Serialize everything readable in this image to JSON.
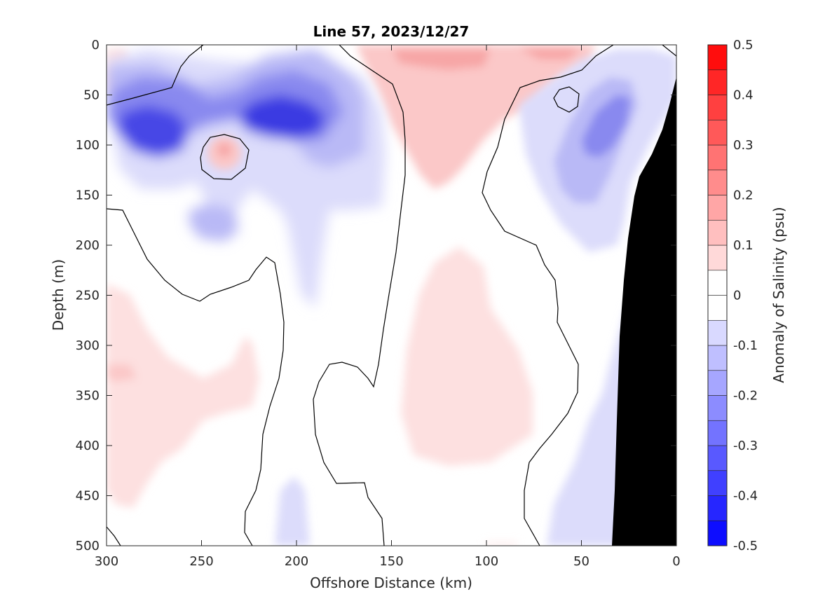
{
  "chart_data": {
    "type": "heatmap",
    "title": "Line 57, 2023/12/27",
    "xlabel": "Offshore Distance (km)",
    "ylabel": "Depth (m)",
    "colorbar_label": "Anomaly of Salinity (psu)",
    "xlim": [
      300,
      0
    ],
    "ylim": [
      500,
      0
    ],
    "x_reversed": true,
    "y_reversed": true,
    "grid": false,
    "x_ticks": [
      300,
      250,
      200,
      150,
      100,
      50,
      0
    ],
    "x_tick_labels": [
      "300",
      "250",
      "200",
      "150",
      "100",
      "50",
      "0"
    ],
    "y_ticks": [
      0,
      50,
      100,
      150,
      200,
      250,
      300,
      350,
      400,
      450,
      500
    ],
    "y_tick_labels": [
      "0",
      "50",
      "100",
      "150",
      "200",
      "250",
      "300",
      "350",
      "400",
      "450",
      "500"
    ],
    "colorbar": {
      "range": [
        -0.5,
        0.5
      ],
      "levels": [
        -0.5,
        -0.45,
        -0.4,
        -0.35,
        -0.3,
        -0.25,
        -0.2,
        -0.15,
        -0.1,
        -0.05,
        0,
        0.05,
        0.1,
        0.15,
        0.2,
        0.25,
        0.3,
        0.35,
        0.4,
        0.45,
        0.5
      ],
      "tick_values": [
        0.5,
        0.4,
        0.3,
        0.2,
        0.1,
        0,
        -0.1,
        -0.2,
        -0.3,
        -0.4,
        -0.5
      ],
      "tick_labels": [
        "0.5",
        "0.4",
        "0.3",
        "0.2",
        "0.1",
        "0",
        "-0.1",
        "-0.2",
        "-0.3",
        "-0.4",
        "-0.5"
      ],
      "min_color": "#0000ff",
      "max_color": "#ff0000",
      "mid_color": "#ffffff"
    },
    "zero_contour_color": "#000000",
    "bathymetry_color": "#000000",
    "anomaly_features": [
      {
        "x": [
          300,
          250
        ],
        "depth": [
          75,
          125
        ],
        "value": -0.45
      },
      {
        "x": [
          230,
          175
        ],
        "depth": [
          55,
          115
        ],
        "value": -0.45
      },
      {
        "x": [
          245,
          228
        ],
        "depth": [
          90,
          125
        ],
        "value": 0.15
      },
      {
        "x": [
          260,
          230
        ],
        "depth": [
          175,
          225
        ],
        "value": -0.2
      },
      {
        "x": [
          200,
          180
        ],
        "depth": [
          100,
          270
        ],
        "value": -0.1
      },
      {
        "x": [
          55,
          25
        ],
        "depth": [
          40,
          165
        ],
        "value": -0.3
      },
      {
        "x": [
          150,
          90
        ],
        "depth": [
          0,
          140
        ],
        "value": 0.2
      },
      {
        "x": [
          135,
          75
        ],
        "depth": [
          200,
          440
        ],
        "value": 0.05
      },
      {
        "x": [
          300,
          230
        ],
        "depth": [
          240,
          470
        ],
        "value": 0.05
      },
      {
        "x": [
          225,
          205
        ],
        "depth": [
          430,
          500
        ],
        "value": -0.1
      },
      {
        "x": [
          65,
          35
        ],
        "depth": [
          280,
          500
        ],
        "value": -0.1
      }
    ]
  }
}
